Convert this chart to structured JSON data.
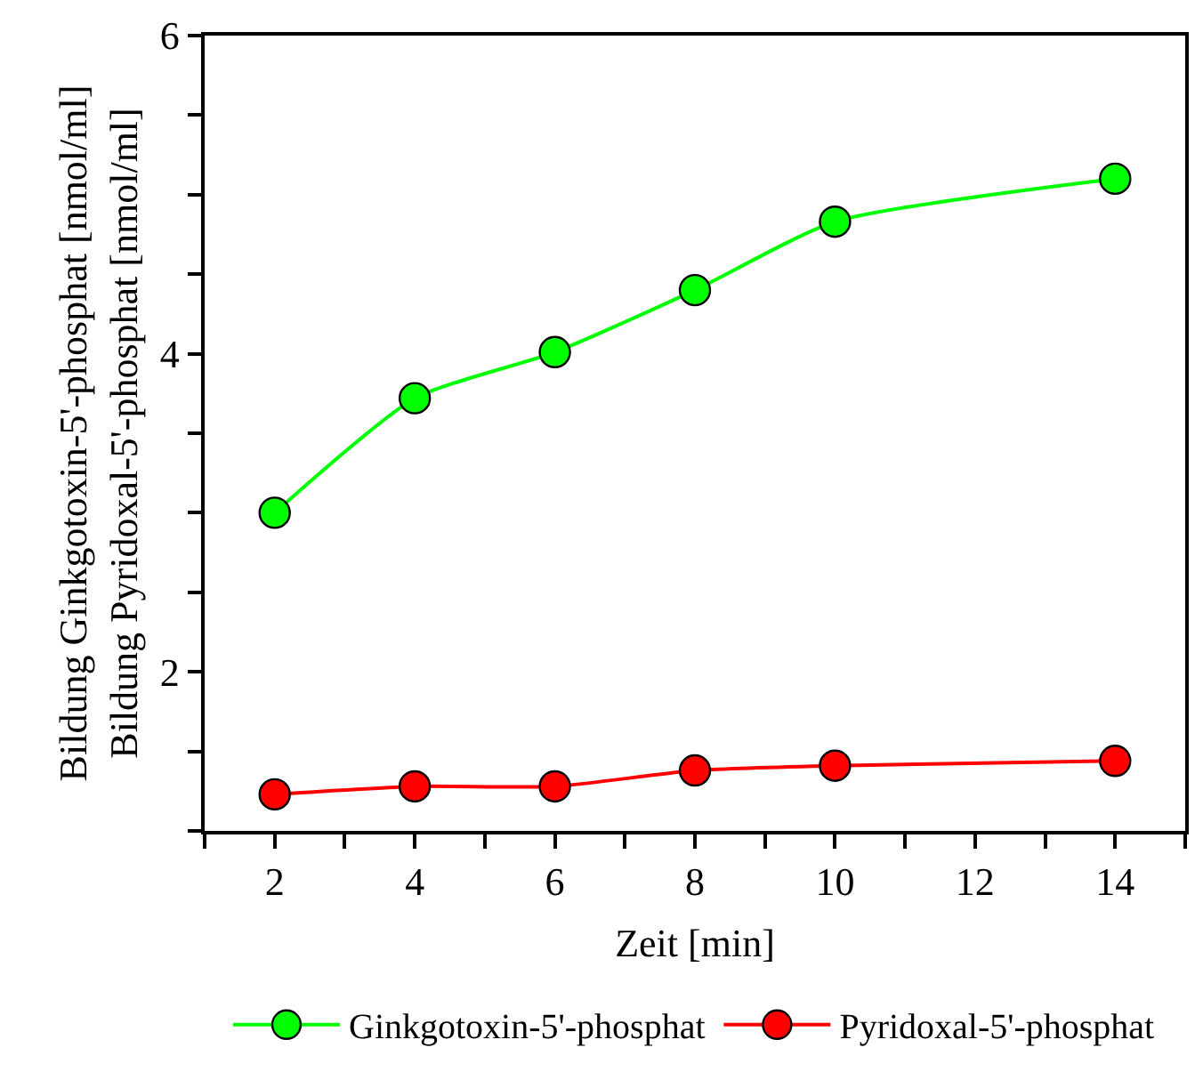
{
  "chart_data": {
    "type": "line",
    "xlabel": "Zeit [min]",
    "ylabel": "Bildung Ginkgotoxin-5'-phosphat [nmol/ml]\nBildung Pyridoxal-5'-phosphat [nmol/ml]",
    "x": [
      2,
      4,
      6,
      8,
      10,
      14
    ],
    "series": [
      {
        "name": "Ginkgotoxin-5'-phosphat",
        "color": "#00ff00",
        "values": [
          3.0,
          3.72,
          4.01,
          4.4,
          4.83,
          5.1
        ]
      },
      {
        "name": "Pyridoxal-5'-phosphat",
        "color": "#ff0000",
        "values": [
          1.23,
          1.28,
          1.28,
          1.38,
          1.41,
          1.44
        ]
      }
    ],
    "xlim": [
      1,
      15
    ],
    "xticks": [
      {
        "value": 1,
        "label": null
      },
      2,
      {
        "value": 3,
        "label": null
      },
      4,
      {
        "value": 5,
        "label": null
      },
      6,
      {
        "value": 7,
        "label": null
      },
      8,
      {
        "value": 9,
        "label": null
      },
      10,
      {
        "value": 11,
        "label": null
      },
      12,
      {
        "value": 13,
        "label": null
      },
      14,
      {
        "value": 15,
        "label": null
      }
    ],
    "ylim": [
      1,
      6
    ],
    "yticks": [
      {
        "value": 1,
        "label": null
      },
      {
        "value": 1.5,
        "label": null
      },
      2,
      {
        "value": 2.5,
        "label": null
      },
      {
        "value": 3,
        "label": null
      },
      {
        "value": 3.5,
        "label": null
      },
      4,
      {
        "value": 4.5,
        "label": null
      },
      {
        "value": 5,
        "label": null
      },
      {
        "value": 5.5,
        "label": null
      },
      6
    ],
    "legend": "bottom",
    "marker": "circle",
    "line_style": "solid"
  }
}
